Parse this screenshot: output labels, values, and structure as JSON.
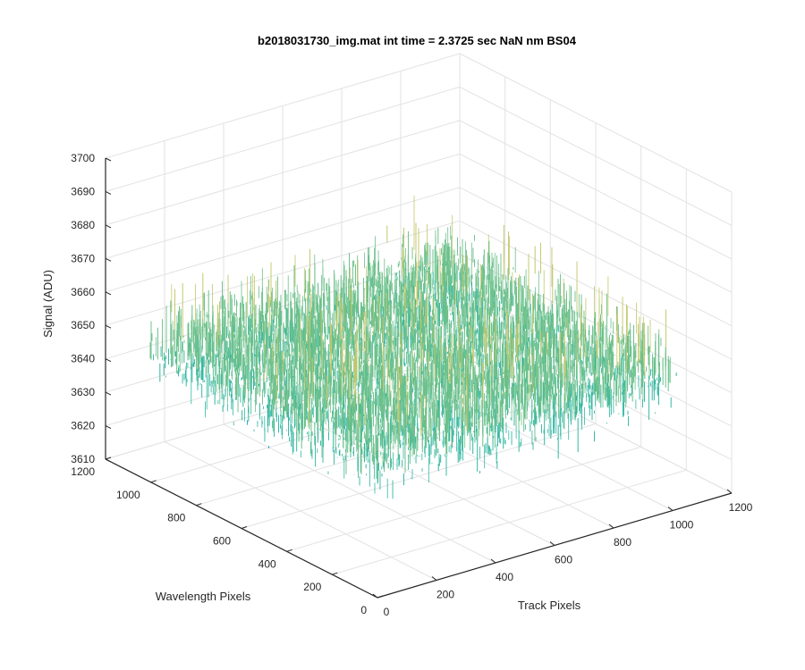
{
  "chart_data": {
    "type": "surface",
    "title": "b2018031730_img.mat int time = 2.3725 sec  NaN nm BS04",
    "xlabel": "Track Pixels",
    "ylabel": "Wavelength Pixels",
    "zlabel": "Signal (ADU)",
    "xlim": [
      0,
      1200
    ],
    "ylim": [
      0,
      1200
    ],
    "zlim": [
      3610,
      3700
    ],
    "xticks": [
      0,
      200,
      400,
      600,
      800,
      1000,
      1200
    ],
    "yticks": [
      0,
      200,
      400,
      600,
      800,
      1000,
      1200
    ],
    "zticks": [
      3610,
      3620,
      3630,
      3640,
      3650,
      3660,
      3670,
      3680,
      3690,
      3700
    ],
    "grid": true,
    "colormap": [
      "#0072bd",
      "#1aa0c8",
      "#33b7a2",
      "#6cc08b",
      "#c3c76a",
      "#e3cf5c"
    ],
    "data_extent": {
      "x": [
        0,
        1024
      ],
      "y": [
        0,
        1024
      ]
    },
    "signal": {
      "mean": 3648,
      "min": 3612,
      "max": 3690
    }
  }
}
